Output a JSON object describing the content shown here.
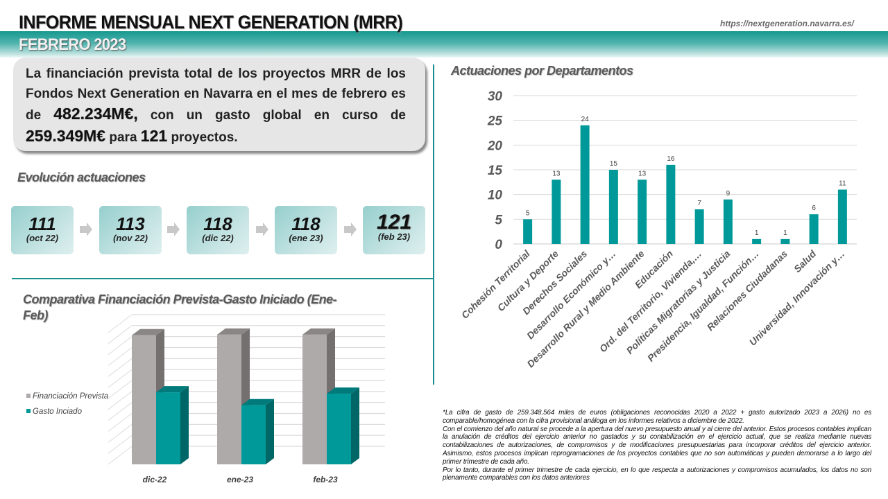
{
  "header": {
    "title": "INFORME MENSUAL NEXT GENERATION (MRR)",
    "subtitle": "FEBRERO 2023",
    "url": "https://nextgeneration.navarra.es/"
  },
  "summary": {
    "text_1": "La financiación prevista total de los proyectos MRR de los Fondos Next Generation en Navarra en el mes de febrero es de ",
    "amount_total": "482.234M€,",
    "text_2": " con un gasto global en curso de ",
    "amount_spent": "259.349M€",
    "text_3": " para ",
    "projects": "121",
    "text_4": " proyectos."
  },
  "evolution": {
    "title": "Evolución actuaciones",
    "items": [
      {
        "value": "111",
        "label": "(oct 22)"
      },
      {
        "value": "113",
        "label": "(nov 22)"
      },
      {
        "value": "118",
        "label": "(dic 22)"
      },
      {
        "value": "118",
        "label": "(ene 23)"
      },
      {
        "value": "121",
        "label": "(feb 23)"
      }
    ]
  },
  "colors": {
    "teal": "#009999",
    "teal_dark": "#006666",
    "grey": "#aeaaaa",
    "grey_dark": "#747070",
    "accent_line": "#178f8a"
  },
  "chart_data": [
    {
      "type": "bar",
      "title": "Actuaciones por Departamentos",
      "categories": [
        "Cohesión Territorial",
        "Cultura y Deporte",
        "Derechos Sociales",
        "Desarrollo Económico y…",
        "Desarrollo Rural y Medio Ambiente",
        "Educación",
        "Ord. del Territorio, Vivienda,…",
        "Políticas Migratorias y Justicia",
        "Presidencia, Igualdad, Función…",
        "Relaciones Ciudadanas",
        "Salud",
        "Universidad, Innovación y…"
      ],
      "values": [
        5,
        13,
        24,
        15,
        13,
        16,
        7,
        9,
        1,
        1,
        6,
        11
      ],
      "ylim": [
        0,
        30
      ],
      "yticks": [
        0,
        5,
        10,
        15,
        20,
        25,
        30
      ],
      "xlabel": "",
      "ylabel": "",
      "grid": true,
      "data_labels": true
    },
    {
      "type": "bar",
      "subtype": "3d-clustered",
      "title": "Comparativa Financiación Prevista-Gasto Iniciado (Ene-Feb)",
      "categories": [
        "dic-22",
        "ene-23",
        "feb-23"
      ],
      "series": [
        {
          "name": "Financiación Prevista",
          "values": [
            0.95,
            0.955,
            0.955
          ]
        },
        {
          "name": "Gasto Inciado",
          "values": [
            0.53,
            0.435,
            0.52
          ]
        }
      ],
      "value_units": "fraction of axis height (no axis labels shown)",
      "ylim": [
        0,
        1
      ],
      "grid": true,
      "legend_position": "left"
    }
  ],
  "footnote": {
    "p1": "*La cifra de gasto de 259.348.564 miles de euros (obligaciones reconocidas 2020 a 2022 + gasto autorizado 2023 a 2026) no es comparable/homogénea con la cifra provisional análoga en los informes relativos a diciembre de 2022.",
    "p2": "Con el comienzo del año natural se procede a la apertura del nuevo presupuesto anual y al cierre del anterior. Estos procesos contables implican la anulación de créditos del ejercicio anterior no gastados y su contabilización en el ejercicio actual, que se realiza mediante nuevas contabilizaciones de autorizaciones, de compromisos y de modificaciones presupuestarias para incorporar créditos del ejercicio anterior. Asimismo, estos procesos implican reprogramaciones de los proyectos contables que no son automáticas y pueden demorarse a lo largo del primer trimestre de cada año.",
    "p3": "Por lo tanto, durante el primer trimestre de cada ejercicio, en lo que respecta a autorizaciones y compromisos acumulados, los datos no son plenamente comparables con los datos anteriores"
  }
}
